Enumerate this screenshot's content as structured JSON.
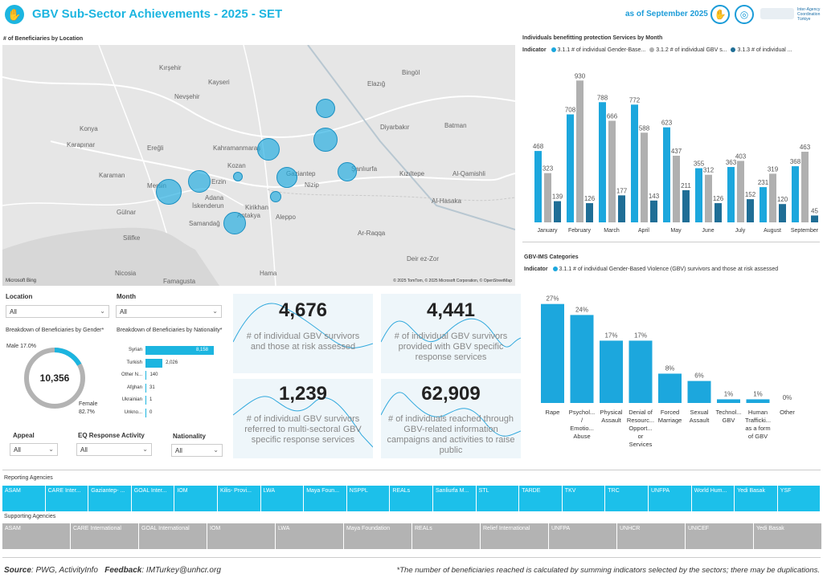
{
  "header": {
    "title": "GBV Sub-Sector Achievements - 2025 - SET",
    "as_of": "as of September 2025",
    "logo_coord_text": "Inter-Agency Coordination Türkiye"
  },
  "map": {
    "label": "# of Beneficiaries by Location",
    "attribution": "© 2025 TomTom, © 2025 Microsoft Corporation, © OpenStreetMap",
    "provider": "Microsoft Bing",
    "cities": [
      "Kırşehir",
      "Kayseri",
      "Nevşehir",
      "Konya",
      "Ereğli",
      "Kahramanmaraş",
      "Adana",
      "Mersin",
      "Gaziantep",
      "Şanlıurfa",
      "Diyarbakır",
      "Elazığ",
      "Bingöl",
      "Batman",
      "Karaman",
      "İskenderun",
      "Nizip",
      "Kızıltepe",
      "Al-Qamishli",
      "Al-Hasaka",
      "Aleppo",
      "Ar-Raqqa",
      "Deir ez-Zor",
      "Hama",
      "Antakya",
      "Samandağ",
      "Kirikhan",
      "Nicosia",
      "Famagusta",
      "Gülnar",
      "Silifke",
      "Karapınar",
      "Kozan",
      "Erzin"
    ]
  },
  "filters": {
    "location_label": "Location",
    "location_value": "All",
    "month_label": "Month",
    "month_value": "All",
    "appeal_label": "Appeal",
    "appeal_value": "All",
    "eq_label": "EQ Response Activity",
    "eq_value": "All",
    "nationality_label": "Nationality",
    "nationality_value": "All"
  },
  "gender": {
    "label": "Breakdown of Beneficiaries by Gender*",
    "total": "10,356",
    "male_label": "Male 17.0%",
    "female_label": "Female",
    "female_pct": "82.7%",
    "male_fraction": 0.17,
    "male_color": "#1cb5e0",
    "female_color": "#b3b3b3"
  },
  "nationality": {
    "label": "Breakdown of Beneficiaries by Nationality*",
    "items": [
      {
        "name": "Syrian",
        "value": 8158,
        "display": "8,158"
      },
      {
        "name": "Turkish",
        "value": 2026,
        "display": "2,026"
      },
      {
        "name": "Other N...",
        "value": 140,
        "display": "140"
      },
      {
        "name": "Afghan",
        "value": 31,
        "display": "31"
      },
      {
        "name": "Ukrainian",
        "value": 1,
        "display": "1"
      },
      {
        "name": "Unkno...",
        "value": 0,
        "display": "0"
      }
    ]
  },
  "cards": [
    {
      "value": "4,676",
      "desc": "# of individual GBV survivors and those at risk assessed"
    },
    {
      "value": "4,441",
      "desc": "# of individual GBV survivors provided with GBV specific response services"
    },
    {
      "value": "1,239",
      "desc": "# of individual GBV survivors referred to multi-sectoral GBV specific response services"
    },
    {
      "value": "62,909",
      "desc": "# of individuals reached through GBV-related information campaigns and activities to raise public"
    }
  ],
  "monthly_chart": {
    "title": "Individuals benefitting protection Services by Month",
    "legend_title": "Indicator",
    "colors": [
      "#1ca7dd",
      "#b0b0b0",
      "#1f6e96"
    ]
  },
  "chart_data": [
    {
      "type": "bar",
      "title": "Individuals benefitting protection Services by Month",
      "categories": [
        "January",
        "February",
        "March",
        "April",
        "May",
        "June",
        "July",
        "August",
        "September"
      ],
      "series": [
        {
          "name": "3.1.1 # of individual Gender-Base...",
          "values": [
            468,
            708,
            788,
            772,
            623,
            355,
            363,
            231,
            368
          ]
        },
        {
          "name": "3.1.2 # of individual GBV s...",
          "values": [
            323,
            930,
            666,
            588,
            437,
            312,
            403,
            319,
            463
          ]
        },
        {
          "name": "3.1.3 # of individual ...",
          "values": [
            139,
            126,
            177,
            143,
            211,
            126,
            152,
            120,
            45
          ]
        }
      ],
      "ylim": [
        0,
        1000
      ],
      "legend_position": "top"
    },
    {
      "type": "bar",
      "title": "GBV-IMS Categories",
      "categories": [
        "Rape",
        "Psychol... / Emotio... Abuse",
        "Physical Assault",
        "Denial of Resourc... Opport... or Services",
        "Forced Marriage",
        "Sexual Assault",
        "Technol... GBV",
        "Human Trafficki... as a form of GBV",
        "Other"
      ],
      "series": [
        {
          "name": "3.1.1 # of individual Gender-Based Violence (GBV) survivors and those at risk assessed",
          "values": [
            27,
            24,
            17,
            17,
            8,
            6,
            1,
            1,
            0
          ]
        }
      ],
      "value_labels": [
        "27%",
        "24%",
        "17%",
        "17%",
        "8%",
        "6%",
        "1%",
        "1%",
        "0%"
      ],
      "ylim": [
        0,
        30
      ],
      "legend_position": "top"
    }
  ],
  "ims_chart": {
    "title": "GBV-IMS Categories",
    "legend_title": "Indicator",
    "color": "#1ca7dd"
  },
  "reporting": {
    "label": "Reporting Agencies",
    "items": [
      "ASAM",
      "CARE Inter...",
      "Gaziantep- ...",
      "GOAL Inter...",
      "IOM",
      "Kilis- Provi...",
      "LWA",
      "Maya Foun...",
      "NSPPL",
      "REALs",
      "Sanliurfa M...",
      "STL",
      "TARDE",
      "TKV",
      "TRC",
      "UNFPA",
      "World Hum...",
      "Yedi Basak",
      "YSF"
    ],
    "color": "#1cc0ea"
  },
  "supporting": {
    "label": "Supporting Agencies",
    "items": [
      "ASAM",
      "CARE International",
      "GOAL International",
      "IOM",
      "LWA",
      "Maya Foundation",
      "REALs",
      "Relief International",
      "UNFPA",
      "UNHCR",
      "UNICEF",
      "Yedi Basak"
    ],
    "color": "#b3b3b3"
  },
  "footer": {
    "source_label": "Source",
    "source_text": ": PWG, ActivityInfo",
    "feedback_label": "Feedback",
    "feedback_text": ": IMTurkey@unhcr.org",
    "note": "*The number of beneficiaries reached is calculated by summing indicators selected by the sectors; there may be duplications."
  }
}
